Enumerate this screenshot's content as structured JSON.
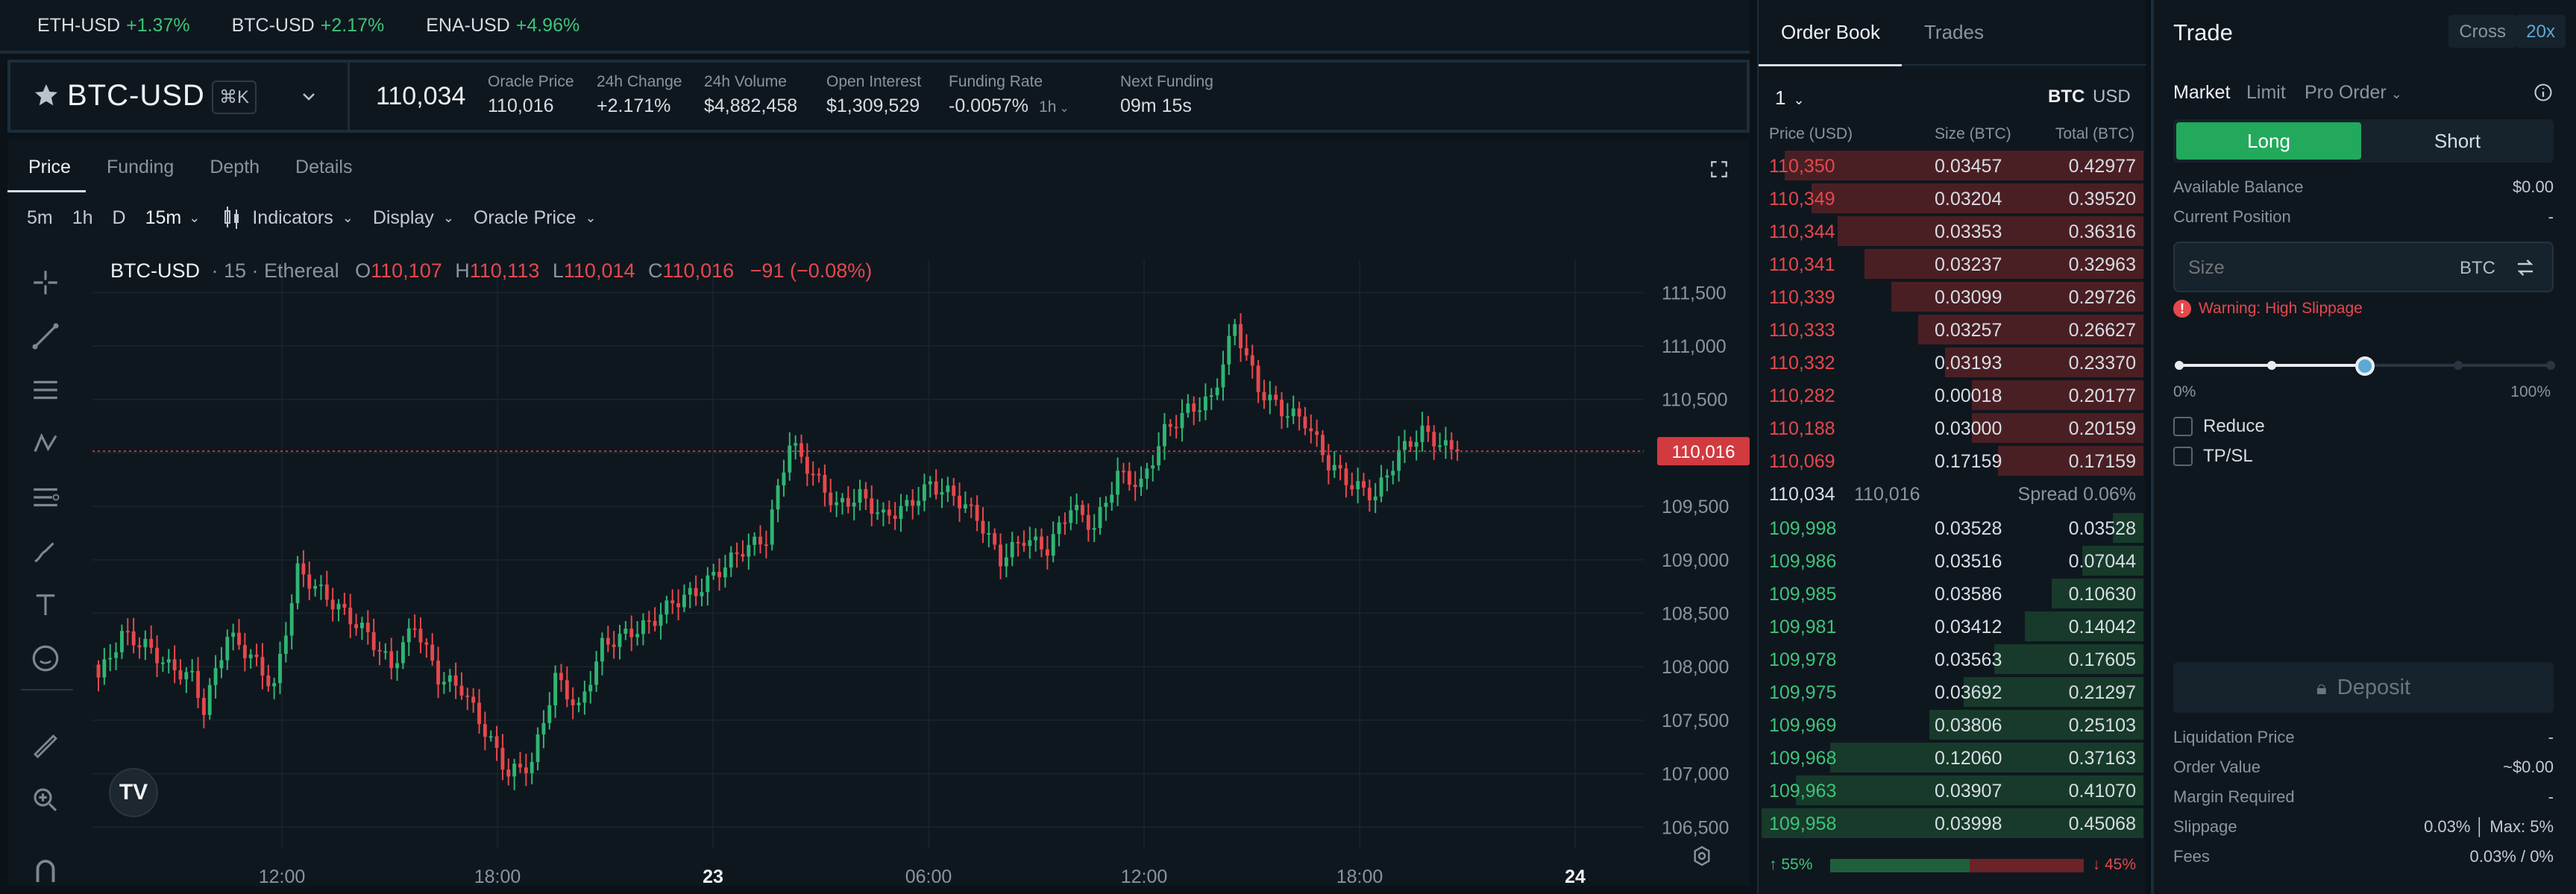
{
  "ticker": [
    {
      "symbol": "ETH-USD",
      "change": "+1.37%"
    },
    {
      "symbol": "BTC-USD",
      "change": "+2.17%"
    },
    {
      "symbol": "ENA-USD",
      "change": "+4.96%"
    }
  ],
  "market": {
    "name": "BTC-USD",
    "shortcut": "⌘K",
    "price": "110,034",
    "stats": [
      {
        "label": "Oracle Price",
        "value": "110,016",
        "tone": "neutral"
      },
      {
        "label": "24h Change",
        "value": "+2.171%",
        "tone": "green"
      },
      {
        "label": "24h Volume",
        "value": "$4,882,458",
        "tone": "neutral"
      },
      {
        "label": "Open Interest",
        "value": "$1,309,529",
        "tone": "neutral"
      },
      {
        "label": "Funding Rate",
        "value": "-0.0057%",
        "tone": "red",
        "extra": "1h"
      },
      {
        "label": "Next Funding",
        "value": "09m 15s",
        "tone": "neutral"
      }
    ]
  },
  "chart_tabs": [
    "Price",
    "Funding",
    "Depth",
    "Details"
  ],
  "chart_toolbar": {
    "intervals": [
      "5m",
      "1h",
      "D",
      "15m"
    ],
    "indicators": "Indicators",
    "display": "Display",
    "oracle": "Oracle Price"
  },
  "legend": {
    "symbol": "BTC-USD",
    "meta": "· 15 · Ethereal",
    "o_label": "O",
    "o": "110,107",
    "h_label": "H",
    "h": "110,113",
    "l_label": "L",
    "l": "110,014",
    "c_label": "C",
    "c": "110,016",
    "change": "−91 (−0.08%)"
  },
  "chart_data": {
    "type": "candlestick",
    "title": "BTC-USD · 15 · Ethereal",
    "y_ticks": [
      "111,500",
      "111,000",
      "110,500",
      "110,000",
      "109,500",
      "109,000",
      "108,500",
      "108,000",
      "107,500",
      "107,000",
      "106,500"
    ],
    "ylim": [
      106300,
      111600
    ],
    "x_ticks": [
      "12:00",
      "18:00",
      "23",
      "06:00",
      "12:00",
      "18:00",
      "24"
    ],
    "last_price_label": "110,016",
    "last_price": 110016,
    "anchors": [
      [
        0,
        107900
      ],
      [
        4,
        108300
      ],
      [
        8,
        108200
      ],
      [
        12,
        108000
      ],
      [
        16,
        107900
      ],
      [
        18,
        107600
      ],
      [
        22,
        108300
      ],
      [
        26,
        108100
      ],
      [
        30,
        107800
      ],
      [
        34,
        108900
      ],
      [
        38,
        108700
      ],
      [
        42,
        108500
      ],
      [
        46,
        108300
      ],
      [
        50,
        108000
      ],
      [
        54,
        108400
      ],
      [
        58,
        107900
      ],
      [
        62,
        107800
      ],
      [
        66,
        107400
      ],
      [
        70,
        107000
      ],
      [
        74,
        107100
      ],
      [
        78,
        107900
      ],
      [
        82,
        107600
      ],
      [
        86,
        108200
      ],
      [
        90,
        108300
      ],
      [
        94,
        108400
      ],
      [
        98,
        108600
      ],
      [
        102,
        108700
      ],
      [
        106,
        108900
      ],
      [
        110,
        109100
      ],
      [
        114,
        109200
      ],
      [
        118,
        110100
      ],
      [
        122,
        109800
      ],
      [
        126,
        109500
      ],
      [
        130,
        109600
      ],
      [
        134,
        109400
      ],
      [
        138,
        109500
      ],
      [
        142,
        109700
      ],
      [
        146,
        109600
      ],
      [
        150,
        109400
      ],
      [
        154,
        109000
      ],
      [
        158,
        109200
      ],
      [
        162,
        109100
      ],
      [
        166,
        109500
      ],
      [
        170,
        109300
      ],
      [
        174,
        109800
      ],
      [
        178,
        109700
      ],
      [
        182,
        110200
      ],
      [
        186,
        110400
      ],
      [
        190,
        110500
      ],
      [
        194,
        111200
      ],
      [
        198,
        110600
      ],
      [
        202,
        110400
      ],
      [
        206,
        110300
      ],
      [
        210,
        109900
      ],
      [
        214,
        109700
      ],
      [
        218,
        109600
      ],
      [
        222,
        110000
      ],
      [
        226,
        110200
      ],
      [
        230,
        110050
      ],
      [
        232,
        110016
      ]
    ]
  },
  "orderbook": {
    "tabs": [
      "Order Book",
      "Trades"
    ],
    "grouping": "1",
    "units": [
      "BTC",
      "USD"
    ],
    "headers": [
      "Price (USD)",
      "Size (BTC)",
      "Total (BTC)"
    ],
    "asks": [
      {
        "price": "110,350",
        "size": "0.03457",
        "total": "0.42977",
        "depth": 0.94
      },
      {
        "price": "110,349",
        "size": "0.03204",
        "total": "0.39520",
        "depth": 0.87
      },
      {
        "price": "110,344",
        "size": "0.03353",
        "total": "0.36316",
        "depth": 0.8
      },
      {
        "price": "110,341",
        "size": "0.03237",
        "total": "0.32963",
        "depth": 0.73
      },
      {
        "price": "110,339",
        "size": "0.03099",
        "total": "0.29726",
        "depth": 0.66
      },
      {
        "price": "110,333",
        "size": "0.03257",
        "total": "0.26627",
        "depth": 0.59
      },
      {
        "price": "110,332",
        "size": "0.03193",
        "total": "0.23370",
        "depth": 0.52
      },
      {
        "price": "110,282",
        "size": "0.00018",
        "total": "0.20177",
        "depth": 0.45
      },
      {
        "price": "110,188",
        "size": "0.03000",
        "total": "0.20159",
        "depth": 0.45
      },
      {
        "price": "110,069",
        "size": "0.17159",
        "total": "0.17159",
        "depth": 0.38
      }
    ],
    "spread": {
      "last": "110,034",
      "oracle": "110,016",
      "label": "Spread 0.06%"
    },
    "bids": [
      {
        "price": "109,998",
        "size": "0.03528",
        "total": "0.03528",
        "depth": 0.08
      },
      {
        "price": "109,986",
        "size": "0.03516",
        "total": "0.07044",
        "depth": 0.16
      },
      {
        "price": "109,985",
        "size": "0.03586",
        "total": "0.10630",
        "depth": 0.24
      },
      {
        "price": "109,981",
        "size": "0.03412",
        "total": "0.14042",
        "depth": 0.31
      },
      {
        "price": "109,978",
        "size": "0.03563",
        "total": "0.17605",
        "depth": 0.39
      },
      {
        "price": "109,975",
        "size": "0.03692",
        "total": "0.21297",
        "depth": 0.47
      },
      {
        "price": "109,969",
        "size": "0.03806",
        "total": "0.25103",
        "depth": 0.56
      },
      {
        "price": "109,968",
        "size": "0.12060",
        "total": "0.37163",
        "depth": 0.82
      },
      {
        "price": "109,963",
        "size": "0.03907",
        "total": "0.41070",
        "depth": 0.91
      },
      {
        "price": "109,958",
        "size": "0.03998",
        "total": "0.45068",
        "depth": 1.0
      }
    ],
    "buy_pct": "55%",
    "sell_pct": "45%",
    "buy_ratio": 0.55
  },
  "trade": {
    "title": "Trade",
    "margin_mode": "Cross",
    "leverage": "20x",
    "order_types": [
      "Market",
      "Limit",
      "Pro Order"
    ],
    "long_label": "Long",
    "short_label": "Short",
    "available_balance_label": "Available Balance",
    "available_balance": "$0.00",
    "current_position_label": "Current Position",
    "current_position": "-",
    "size_placeholder": "Size",
    "size_unit": "BTC",
    "warning": "Warning: High Slippage",
    "slider_min": "0%",
    "slider_max": "100%",
    "slider_value": 0.5,
    "reduce_label": "Reduce",
    "tpsl_label": "TP/SL",
    "deposit_label": "Deposit",
    "details": [
      {
        "label": "Liquidation Price",
        "value": "-"
      },
      {
        "label": "Order Value",
        "value": "~$0.00"
      },
      {
        "label": "Margin Required",
        "value": "-"
      },
      {
        "label": "Slippage",
        "value": "0.03% │ Max: 5%"
      },
      {
        "label": "Fees",
        "value": "0.03% / 0%"
      }
    ]
  },
  "colors": {
    "up": "#2fb573",
    "down": "#e5484d",
    "bg": "#0f171e",
    "accent": "#23a95b"
  }
}
